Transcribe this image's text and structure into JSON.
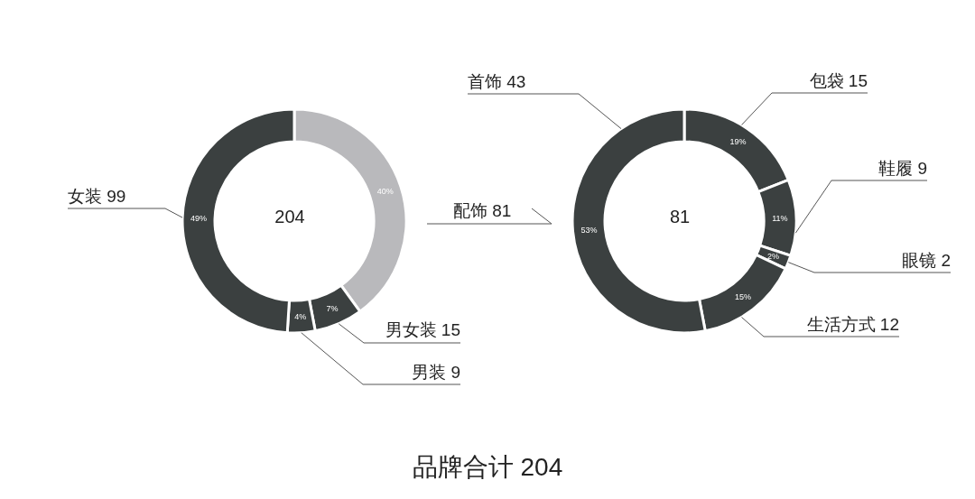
{
  "chart_data": [
    {
      "type": "donut",
      "title": "品牌合计 204",
      "categories": [
        "配饰 81",
        "男女装 15",
        "男装 9",
        "女装 99"
      ],
      "values": [
        40,
        7,
        4,
        49
      ],
      "colors": [
        "#b9b9bc",
        "#3b4040",
        "#3b4040",
        "#3b4040"
      ],
      "value_labels": [
        "40%",
        "7%",
        "4%",
        "49%"
      ],
      "annotations": [
        "204"
      ]
    },
    {
      "type": "donut",
      "categories": [
        "包袋 15",
        "鞋履 9",
        "眼镜 2",
        "生活方式 12",
        "首饰 43"
      ],
      "values": [
        19,
        11,
        2,
        15,
        53
      ],
      "colors": [
        "#3b4040",
        "#3b4040",
        "#3b4040",
        "#3b4040",
        "#3b4040"
      ],
      "value_labels": [
        "19%",
        "11%",
        "2%",
        "15%",
        "53%"
      ],
      "annotations": [
        "81"
      ]
    }
  ]
}
